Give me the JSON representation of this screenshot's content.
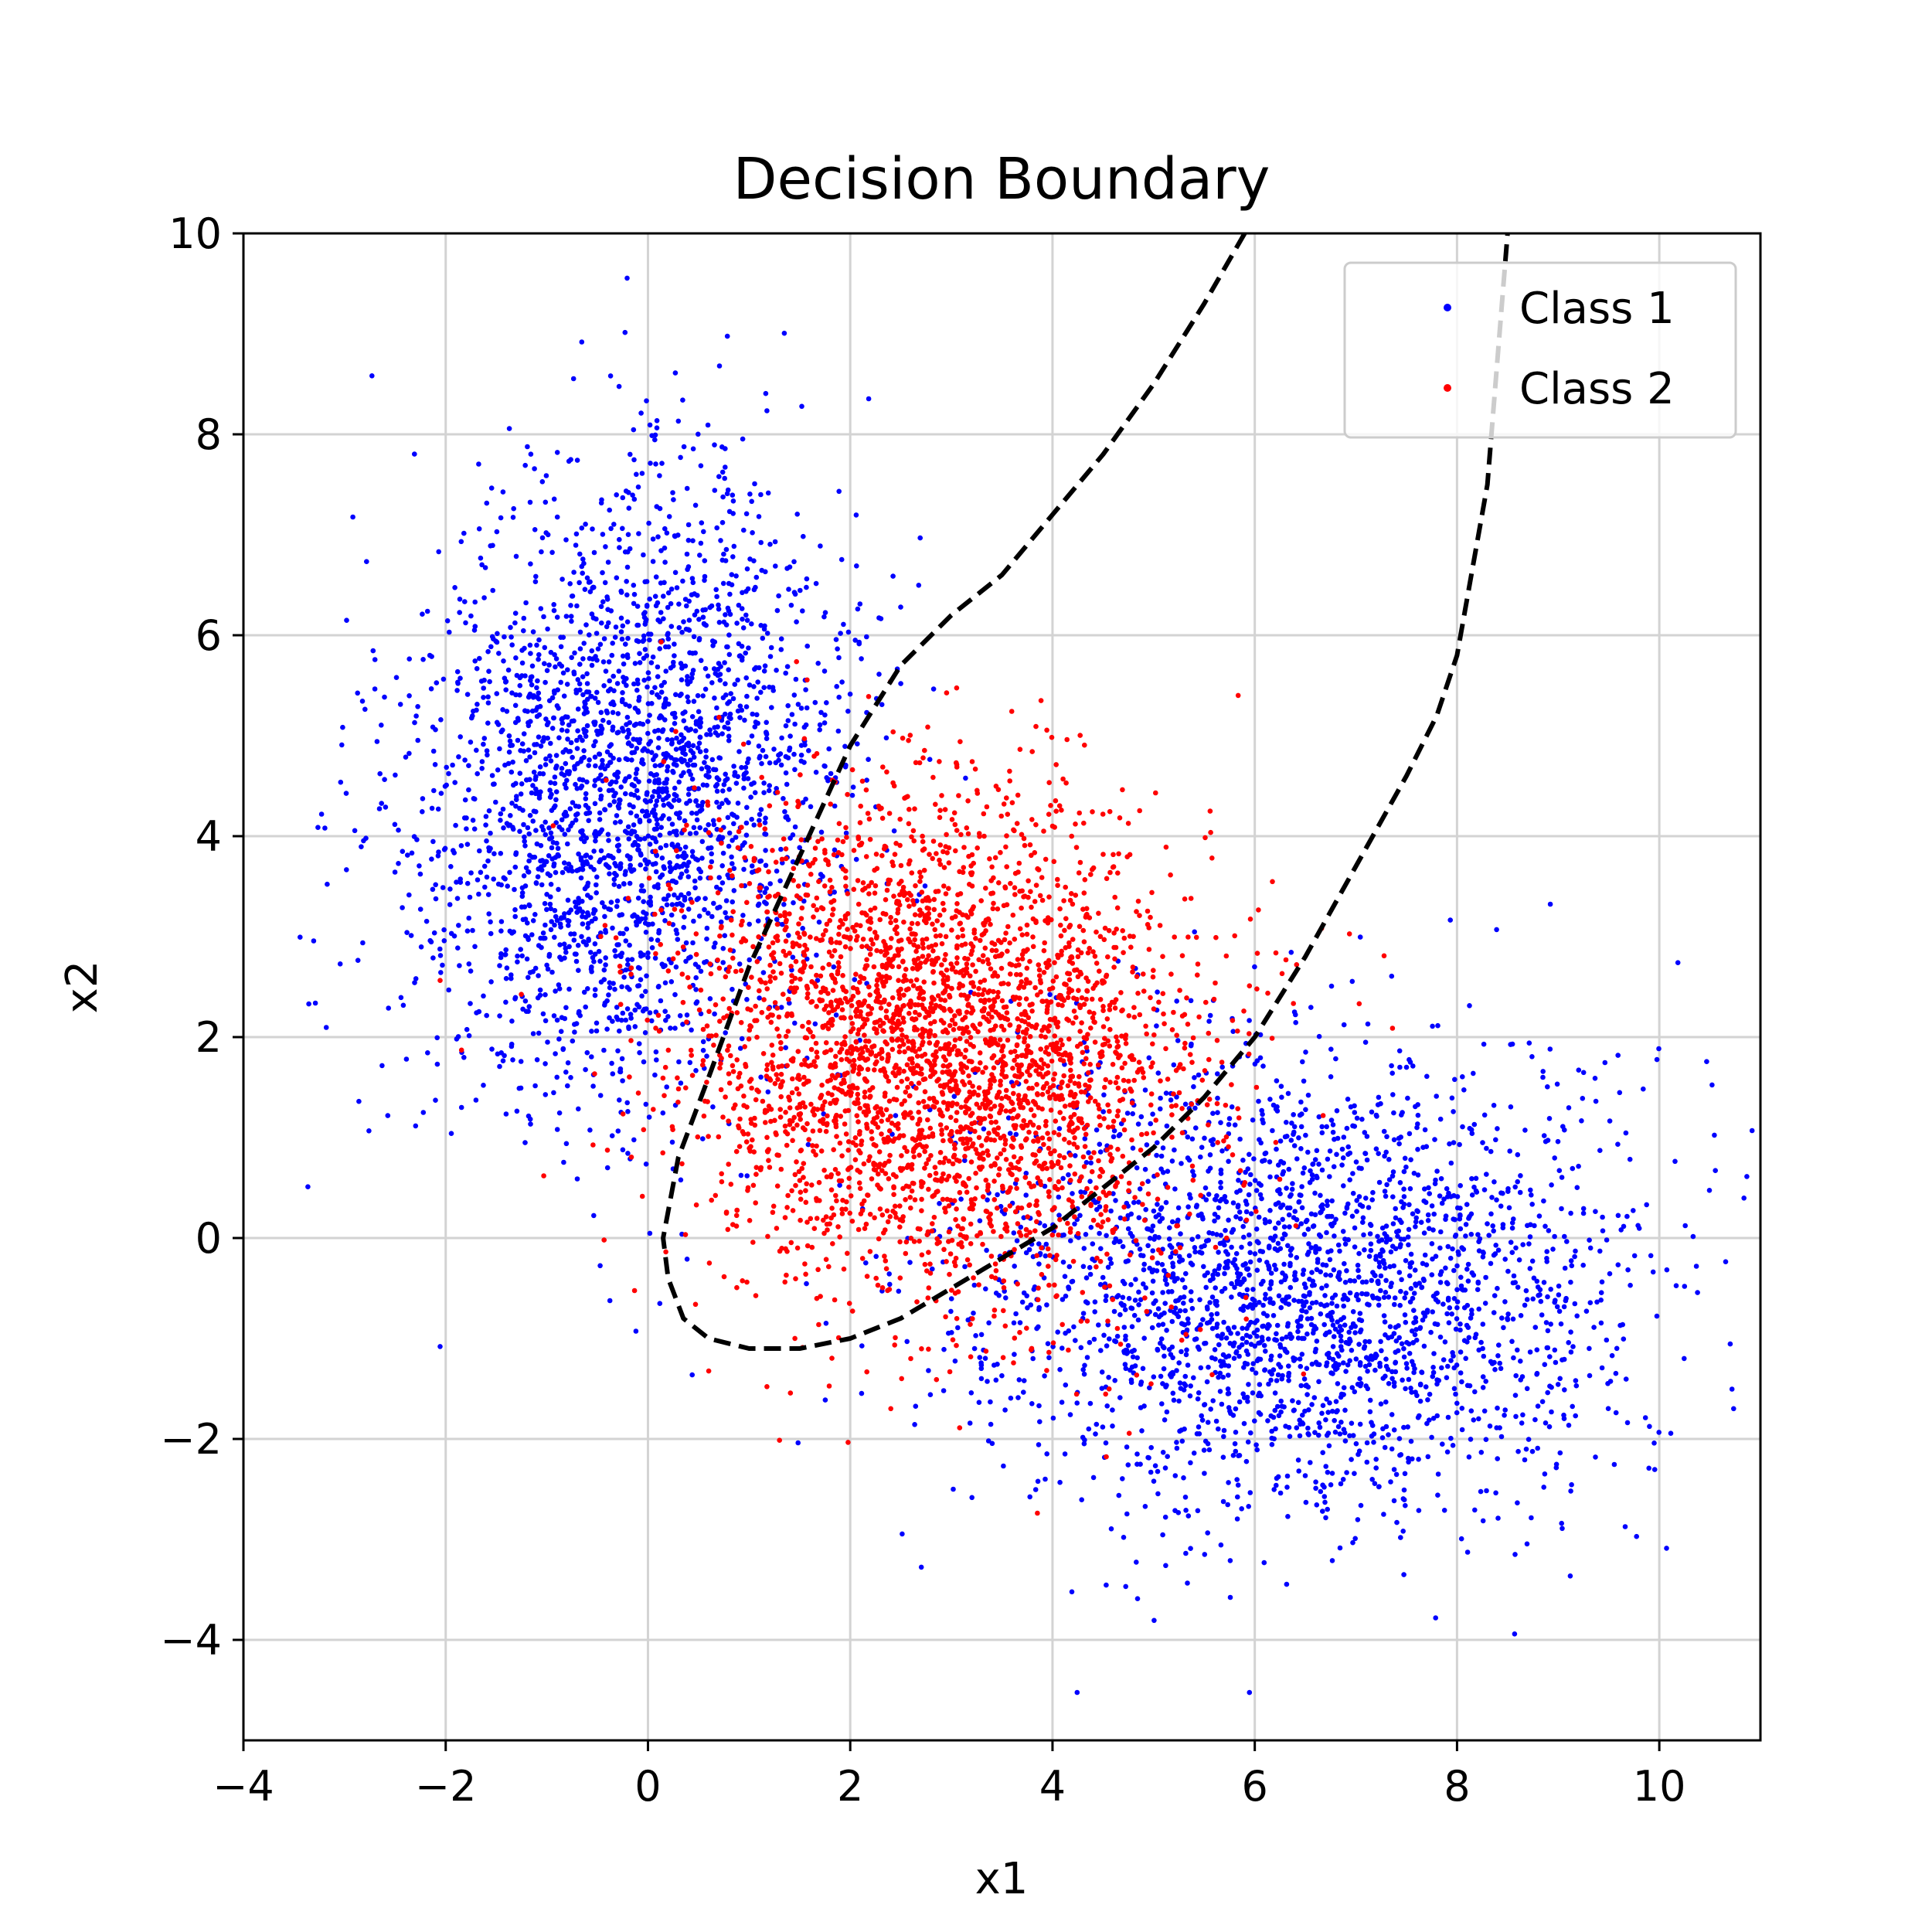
{
  "chart_data": {
    "type": "scatter",
    "title": "Decision Boundary",
    "xlabel": "x1",
    "ylabel": "x2",
    "xlim": [
      -4,
      11
    ],
    "ylim": [
      -5,
      10
    ],
    "xticks": [
      -4,
      -2,
      0,
      2,
      4,
      6,
      8,
      10
    ],
    "yticks": [
      -4,
      -2,
      0,
      2,
      4,
      6,
      8,
      10
    ],
    "xtick_labels": [
      "−4",
      "−2",
      "0",
      "2",
      "4",
      "6",
      "8",
      "10"
    ],
    "ytick_labels": [
      "−4",
      "−2",
      "0",
      "2",
      "4",
      "6",
      "8",
      "10"
    ],
    "grid": true,
    "legend_position": "top-right",
    "series": [
      {
        "name": "Class 1",
        "color": "#0000ff",
        "clusters": [
          {
            "mean": [
              -0.2,
              4.5
            ],
            "std": [
              1.05,
              1.55
            ],
            "corr": 0.15,
            "count": 2600
          },
          {
            "mean": [
              6.5,
              -0.5
            ],
            "std": [
              1.65,
              1.15
            ],
            "corr": 0.0,
            "count": 2600
          }
        ]
      },
      {
        "name": "Class 2",
        "color": "#ff0000",
        "clusters": [
          {
            "mean": [
              2.9,
              1.9
            ],
            "std": [
              1.25,
              1.25
            ],
            "corr": -0.05,
            "count": 3400
          }
        ]
      }
    ],
    "boundary": {
      "style": "dashed",
      "color": "#000000",
      "branches": [
        {
          "x": [
            5.9,
            5.5,
            5.0,
            4.5,
            4.0,
            3.5,
            3.0,
            2.5,
            2.0,
            1.5,
            1.0,
            0.6,
            0.3,
            0.15,
            0.2,
            0.35,
            0.6,
            1.0,
            1.5,
            2.0,
            2.5,
            3.0,
            3.5,
            4.0,
            4.5,
            5.0,
            5.5,
            6.0,
            6.5,
            7.0,
            7.5,
            7.8,
            8.0,
            8.3,
            8.5
          ],
          "y": [
            10.0,
            9.3,
            8.5,
            7.8,
            7.2,
            6.6,
            6.2,
            5.7,
            4.9,
            3.8,
            2.7,
            1.6,
            0.8,
            0.0,
            -0.4,
            -0.8,
            -1.0,
            -1.1,
            -1.1,
            -1.0,
            -0.8,
            -0.5,
            -0.2,
            0.1,
            0.5,
            0.9,
            1.4,
            2.0,
            2.8,
            3.7,
            4.6,
            5.2,
            5.8,
            7.5,
            10.0
          ]
        }
      ]
    }
  }
}
